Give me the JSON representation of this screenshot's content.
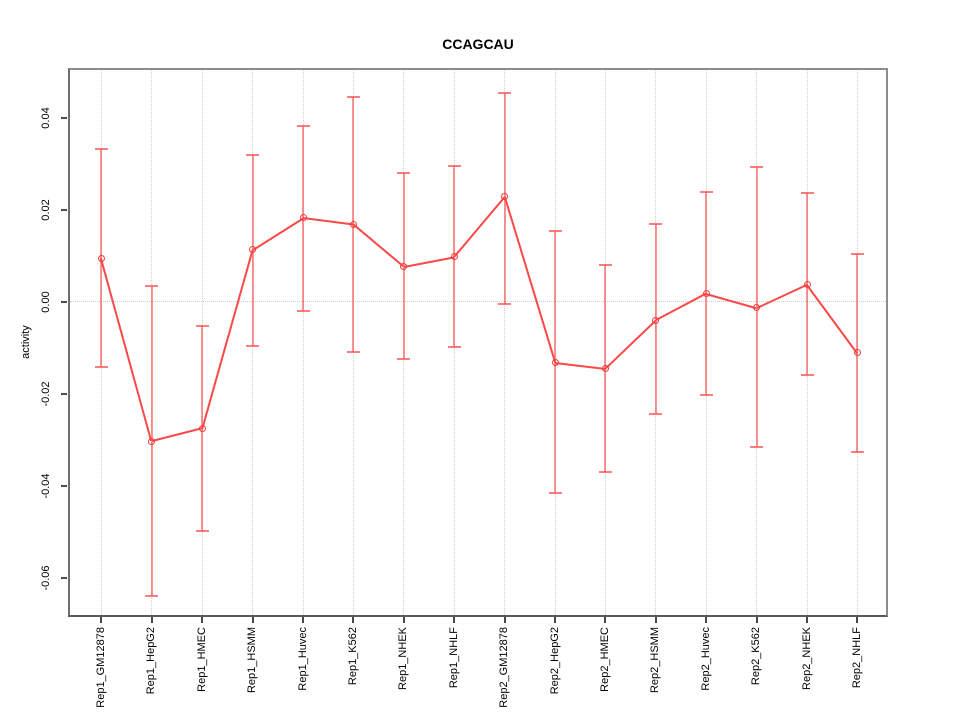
{
  "figure": {
    "title": "CCAGCAU",
    "ylabel": "activity",
    "background": "#ffffff"
  },
  "chart_data": {
    "type": "line",
    "subtype": "points-with-error-bars",
    "title": "CCAGCAU",
    "xlabel": "",
    "ylabel": "activity",
    "legend": "none",
    "grid": "vertical dotted gridline at each category; horizontal dotted line at y=0",
    "categories": [
      "Rep1_GM12878",
      "Rep1_HepG2",
      "Rep1_HMEC",
      "Rep1_HSMM",
      "Rep1_Huvec",
      "Rep1_K562",
      "Rep1_NHEK",
      "Rep1_NHLF",
      "Rep2_GM12878",
      "Rep2_HepG2",
      "Rep2_HMEC",
      "Rep2_HSMM",
      "Rep2_Huvec",
      "Rep2_K562",
      "Rep2_NHEK",
      "Rep2_NHLF"
    ],
    "series": [
      {
        "name": "activity",
        "values": [
          0.0095,
          -0.0303,
          -0.0275,
          0.0114,
          0.0183,
          0.0169,
          0.0077,
          0.0098,
          0.0228,
          -0.0132,
          -0.0145,
          -0.004,
          0.0018,
          -0.0013,
          0.0038,
          -0.0111
        ],
        "upper": [
          0.0333,
          0.0034,
          -0.0052,
          0.032,
          0.0383,
          0.0446,
          0.0281,
          0.0295,
          0.0455,
          0.0154,
          0.0081,
          0.017,
          0.0239,
          0.0293,
          0.0237,
          0.0105
        ],
        "lower": [
          -0.0141,
          -0.0639,
          -0.0499,
          -0.0096,
          -0.002,
          -0.011,
          -0.0125,
          -0.0098,
          -0.0004,
          -0.0415,
          -0.037,
          -0.0244,
          -0.0203,
          -0.0315,
          -0.0159,
          -0.0327
        ]
      }
    ],
    "ylim": [
      -0.0681,
      0.0504
    ],
    "yticks": [
      0.04,
      0.02,
      0.0,
      -0.02,
      -0.04,
      -0.06
    ],
    "ytick_labels": [
      "0.04",
      "0.02",
      "0.00",
      "-0.02",
      "-0.04",
      "-0.06"
    ],
    "marker": "open-circle",
    "colors": {
      "line": "#fb4848",
      "marker": "#f43c3c",
      "errorbar": "rgba(250,82,82,0.65)",
      "gridline": "#cdcdcd",
      "box": "#8c8c8c",
      "tick": "#4a4a4a",
      "text": "#000000"
    }
  }
}
